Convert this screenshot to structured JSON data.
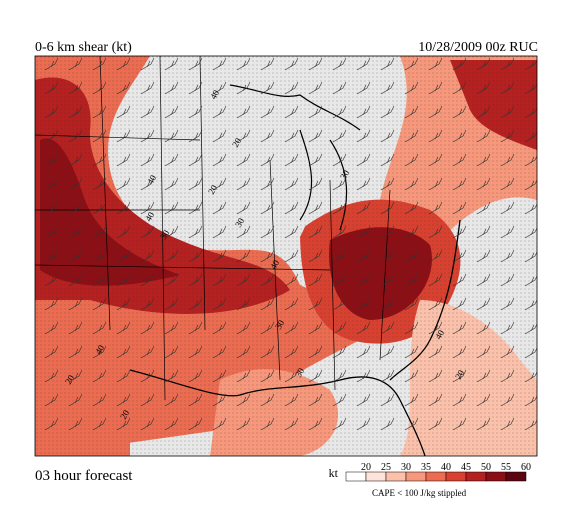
{
  "header": {
    "title": "0-6 km shear (kt)",
    "run": "10/28/2009  00z  RUC"
  },
  "footer": {
    "forecast": "03 hour forecast",
    "note": "CAPE < 100 J/kg stippled"
  },
  "legend": {
    "unit": "kt",
    "levels": [
      20,
      25,
      30,
      35,
      40,
      45,
      50,
      55,
      60
    ],
    "colors": [
      "#ffffff",
      "#fde3d9",
      "#fbc1ab",
      "#f7987c",
      "#ec6c52",
      "#d8412f",
      "#b42120",
      "#8c0f16",
      "#5c0510"
    ]
  },
  "map": {
    "contour_labels": [
      "40",
      "20",
      "30",
      "20",
      "30",
      "40",
      "40",
      "40",
      "30",
      "40",
      "20",
      "40",
      "20",
      "30",
      "20",
      "30"
    ]
  }
}
